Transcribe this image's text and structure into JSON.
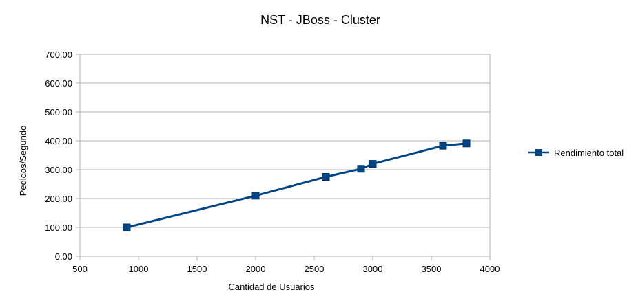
{
  "chart_data": {
    "type": "line",
    "title": "NST - JBoss - Cluster",
    "xlabel": "Cantidad de Usuarios",
    "ylabel": "Pedidos/Segundo",
    "xlim": [
      500,
      4000
    ],
    "ylim": [
      0,
      700
    ],
    "x_ticks": [
      500,
      1000,
      1500,
      2000,
      2500,
      3000,
      3500,
      4000
    ],
    "y_ticks": [
      "0.00",
      "100.00",
      "200.00",
      "300.00",
      "400.00",
      "500.00",
      "600.00",
      "700.00"
    ],
    "grid": true,
    "legend_position": "right",
    "series": [
      {
        "name": "Rendimiento total",
        "color": "#004586",
        "marker": "square",
        "x": [
          900,
          2000,
          2600,
          2900,
          3000,
          3600,
          3800
        ],
        "y": [
          100,
          210,
          275,
          303,
          320,
          383,
          391
        ]
      }
    ]
  }
}
